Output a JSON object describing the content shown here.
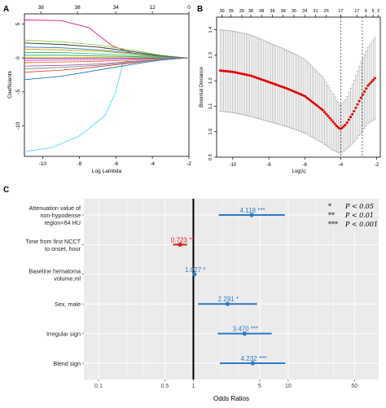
{
  "panels": {
    "A": {
      "letter": "A"
    },
    "B": {
      "letter": "B"
    },
    "C": {
      "letter": "C"
    }
  },
  "chart_data": [
    {
      "type": "line",
      "panel": "A",
      "xlabel": "Log Lambda",
      "ylabel": "Coefficients",
      "xlim": [
        -11,
        -2
      ],
      "ylim": [
        -14.5,
        6.5
      ],
      "x_ticks": [
        -10,
        -8,
        -6,
        -4,
        -2
      ],
      "y_ticks": [
        -10,
        -5,
        0,
        5
      ],
      "top_ticks": [
        {
          "x": -10.1,
          "label": "38"
        },
        {
          "x": -8.1,
          "label": "38"
        },
        {
          "x": -6.0,
          "label": "34"
        },
        {
          "x": -4.0,
          "label": "12"
        },
        {
          "x": -2.0,
          "label": "0"
        }
      ],
      "series": [
        {
          "color": "#d61f8d",
          "x": [
            -11,
            -9,
            -7.5,
            -6.2,
            -5,
            -3.5,
            -2.1
          ],
          "y": [
            5.6,
            5.5,
            4.5,
            1.8,
            0.6,
            0.2,
            0
          ]
        },
        {
          "color": "#5ad6e6",
          "x": [
            -11,
            -9.5,
            -8,
            -6.6,
            -6,
            -5.6,
            -5,
            -3.5,
            -2.1
          ],
          "y": [
            -13.8,
            -13.2,
            -11.5,
            -8.5,
            -5,
            -0.6,
            -0.2,
            -0.1,
            0
          ]
        },
        {
          "color": "#1a74b8",
          "x": [
            -11,
            -9,
            -7,
            -5,
            -3.5,
            -2.1
          ],
          "y": [
            -3.2,
            -2.7,
            -1.8,
            -0.9,
            -0.3,
            0
          ]
        },
        {
          "color": "#8ad14a",
          "x": [
            -11,
            -9,
            -7,
            -5,
            -3.5,
            -2.1
          ],
          "y": [
            2.6,
            2.4,
            1.9,
            1.1,
            0.4,
            0
          ]
        },
        {
          "color": "#333333",
          "x": [
            -11,
            -9,
            -7,
            -5,
            -3.5,
            -2.1
          ],
          "y": [
            2.2,
            2.0,
            1.6,
            0.9,
            0.3,
            0
          ]
        },
        {
          "color": "#e34a33",
          "x": [
            -11,
            -9,
            -7,
            -5,
            -3.5,
            -2.1
          ],
          "y": [
            -2.1,
            -1.8,
            -1.3,
            -0.7,
            -0.2,
            0
          ]
        },
        {
          "color": "#c4a000",
          "x": [
            -11,
            -9,
            -7,
            -5,
            -3.5,
            -2.1
          ],
          "y": [
            1.3,
            1.2,
            1.0,
            0.6,
            0.2,
            0
          ]
        },
        {
          "color": "#9b59b6",
          "x": [
            -11,
            -9,
            -7,
            -5,
            -3.5,
            -2.1
          ],
          "y": [
            -1.2,
            -1.1,
            -0.9,
            -0.5,
            -0.2,
            0
          ]
        },
        {
          "color": "#2ecc71",
          "x": [
            -11,
            -9,
            -7,
            -5,
            -3.5,
            -2.1
          ],
          "y": [
            0.8,
            0.8,
            0.6,
            0.4,
            0.1,
            0
          ]
        },
        {
          "color": "#e67e22",
          "x": [
            -11,
            -9,
            -7,
            -5,
            -3.5,
            -2.1
          ],
          "y": [
            -0.7,
            -0.6,
            -0.5,
            -0.3,
            -0.1,
            0
          ]
        },
        {
          "color": "#16a085",
          "x": [
            -11,
            -9,
            -7,
            -5,
            -3.5,
            -2.1
          ],
          "y": [
            0.4,
            0.4,
            0.3,
            0.2,
            0.05,
            0
          ]
        },
        {
          "color": "#ff66cc",
          "x": [
            -11,
            -9,
            -7,
            -5,
            -3.5,
            -2.1
          ],
          "y": [
            -0.4,
            -0.35,
            -0.3,
            -0.15,
            -0.05,
            0
          ]
        },
        {
          "color": "#2980b9",
          "x": [
            -11,
            -9,
            -7,
            -5,
            -3.5,
            -2.1
          ],
          "y": [
            1.6,
            1.5,
            1.2,
            0.7,
            0.25,
            0
          ]
        },
        {
          "color": "#7f8c8d",
          "x": [
            -11,
            -9,
            -7,
            -5,
            -3.5,
            -2.1
          ],
          "y": [
            -1.6,
            -1.4,
            -1.1,
            -0.6,
            -0.2,
            0
          ]
        },
        {
          "color": "#f1c40f",
          "x": [
            -11,
            -9,
            -7,
            -5,
            -3.5,
            -2.1
          ],
          "y": [
            0.1,
            0.1,
            0.08,
            0.05,
            0.02,
            0
          ]
        },
        {
          "color": "#8e44ad",
          "x": [
            -11,
            -9,
            -7,
            -5,
            -3.5,
            -2.1
          ],
          "y": [
            -0.1,
            -0.1,
            -0.08,
            -0.05,
            -0.02,
            0
          ]
        }
      ]
    },
    {
      "type": "scatter",
      "panel": "B",
      "xlabel": "Log(λ)",
      "ylabel": "Binomial Deviance",
      "xlim": [
        -10.9,
        -1.8
      ],
      "ylim": [
        0.9,
        1.45
      ],
      "x_ticks": [
        -10,
        -8,
        -6,
        -4,
        -2
      ],
      "y_ticks": [
        0.9,
        1.0,
        1.1,
        1.2,
        1.3,
        1.4
      ],
      "vlines": [
        -4.0,
        -2.8
      ],
      "top_ticks": [
        {
          "x": -10.6,
          "label": "39"
        },
        {
          "x": -10.1,
          "label": "39"
        },
        {
          "x": -9.5,
          "label": "39"
        },
        {
          "x": -9.0,
          "label": "38"
        },
        {
          "x": -8.4,
          "label": "38"
        },
        {
          "x": -7.8,
          "label": "38"
        },
        {
          "x": -7.2,
          "label": "38"
        },
        {
          "x": -6.6,
          "label": "35"
        },
        {
          "x": -6.0,
          "label": "34"
        },
        {
          "x": -5.4,
          "label": "31"
        },
        {
          "x": -4.8,
          "label": "26"
        },
        {
          "x": -4.0,
          "label": "17"
        },
        {
          "x": -3.1,
          "label": "17"
        },
        {
          "x": -2.6,
          "label": "6"
        },
        {
          "x": -2.2,
          "label": "5"
        },
        {
          "x": -1.9,
          "label": "2"
        }
      ],
      "curve": {
        "x": [
          -10.7,
          -10,
          -9,
          -8,
          -7,
          -6,
          -5,
          -4.5,
          -4.2,
          -4.0,
          -3.7,
          -3.3,
          -2.9,
          -2.5,
          -2.1
        ],
        "y": [
          1.24,
          1.235,
          1.22,
          1.195,
          1.17,
          1.14,
          1.085,
          1.045,
          1.02,
          1.01,
          1.03,
          1.075,
          1.13,
          1.18,
          1.21
        ],
        "err": [
          0.16,
          0.16,
          0.16,
          0.155,
          0.15,
          0.145,
          0.13,
          0.115,
          0.1,
          0.095,
          0.1,
          0.12,
          0.14,
          0.15,
          0.16
        ]
      },
      "point_color": "#e00000",
      "error_bar_color": "#9e9e9e"
    },
    {
      "type": "scatter",
      "panel": "C",
      "subtype": "forest",
      "xlabel": "Odds Ratios",
      "x_scale": "log",
      "xlim": [
        0.07,
        90
      ],
      "x_ticks": [
        0.1,
        0.5,
        1,
        5,
        10,
        50
      ],
      "x_tick_labels": [
        "0.1",
        "0.5",
        "1",
        "5",
        "10",
        "50"
      ],
      "reference_line": 1,
      "rows": [
        {
          "label": "Attenuation value of non-hypodense region<64 HU",
          "or": 4.118,
          "low": 1.85,
          "high": 9.2,
          "text": "4.118 ***",
          "color": "#2e7bc4"
        },
        {
          "label": "Time from first NCCT to onset, hour",
          "or": 0.723,
          "low": 0.61,
          "high": 0.86,
          "text": "0.723 **",
          "color": "#e0201b"
        },
        {
          "label": "Baseline hematoma volume,ml",
          "or": 1.027,
          "low": 1.0,
          "high": 1.055,
          "text": "1.027 *",
          "color": "#2e7bc4"
        },
        {
          "label": "Sex, male",
          "or": 2.291,
          "low": 1.12,
          "high": 4.7,
          "text": "2.291 *",
          "color": "#2e7bc4"
        },
        {
          "label": "Irregular sign",
          "or": 3.47,
          "low": 1.8,
          "high": 6.7,
          "text": "3.470 ***",
          "color": "#2e7bc4"
        },
        {
          "label": "Blend sign",
          "or": 4.232,
          "low": 1.9,
          "high": 9.3,
          "text": "4.232 ***",
          "color": "#2e7bc4"
        }
      ],
      "significance_key": [
        {
          "stars": "*",
          "text": "P < 0.05"
        },
        {
          "stars": "**",
          "text": "P < 0.01"
        },
        {
          "stars": "***",
          "text": "P < 0.001"
        }
      ],
      "panel_background": "#ebebeb",
      "grid_color": "#ffffff"
    }
  ]
}
